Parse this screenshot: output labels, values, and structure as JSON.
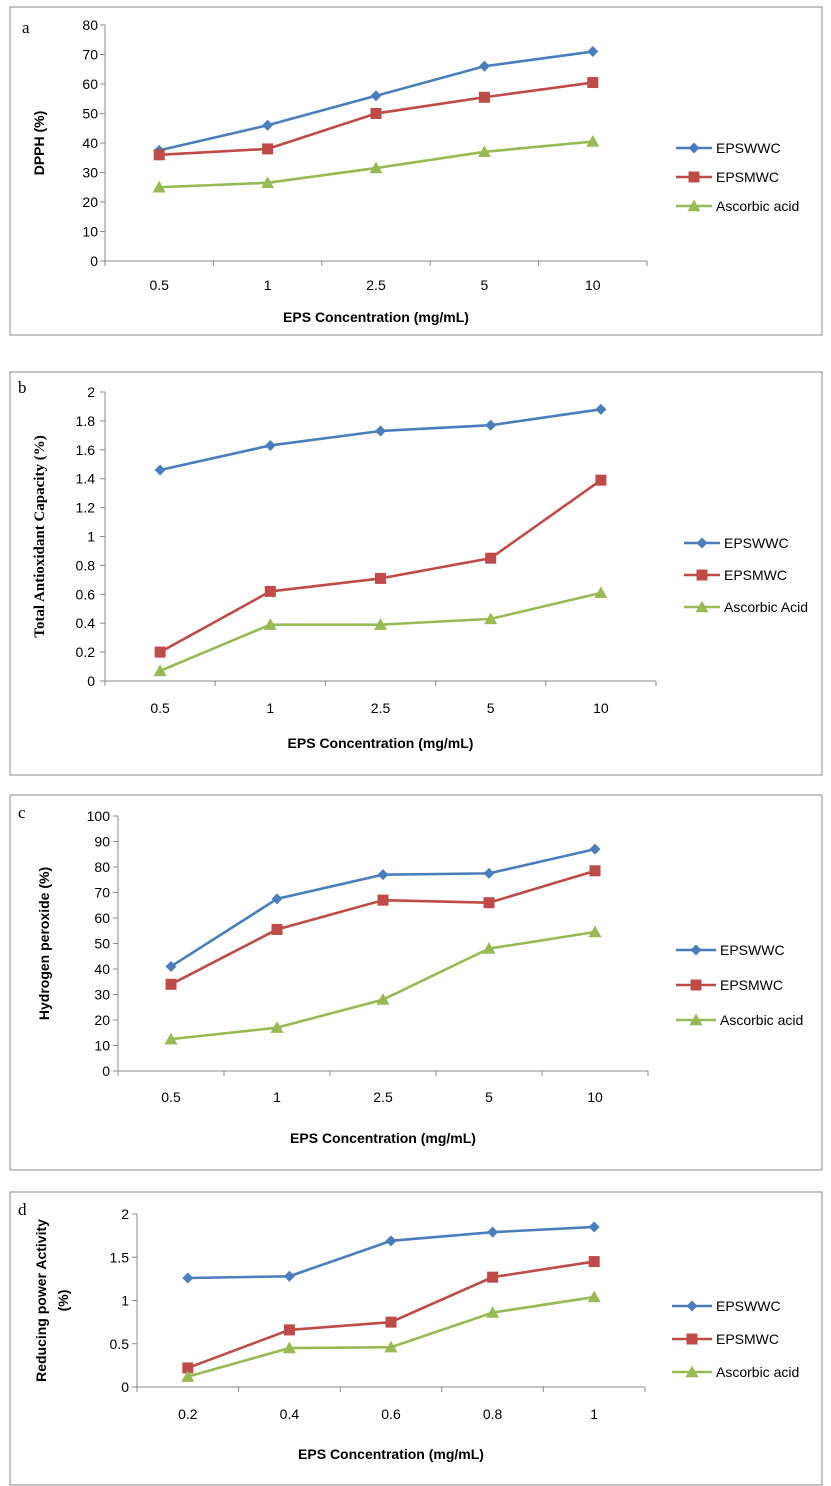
{
  "chart_data": [
    {
      "panel": "a",
      "type": "line",
      "categories": [
        "0.5",
        "1",
        "2.5",
        "5",
        "10"
      ],
      "xlabel": "EPS Concentration (mg/mL)",
      "ylabel": "DPPH (%)",
      "ylim": [
        0,
        80
      ],
      "yticks": [
        "0",
        "10",
        "20",
        "30",
        "40",
        "50",
        "60",
        "70",
        "80"
      ],
      "grid": false,
      "legend_position": "right",
      "series": [
        {
          "name": "EPSWWC",
          "color": "#4a7ebb",
          "marker": "diamond",
          "values": [
            37.5,
            46,
            56,
            66,
            71
          ]
        },
        {
          "name": "EPSMWC",
          "color": "#be4b48",
          "marker": "square",
          "values": [
            36,
            38,
            50,
            55.5,
            60.5
          ]
        },
        {
          "name": "Ascorbic acid",
          "color": "#98b954",
          "marker": "triangle",
          "values": [
            25,
            26.5,
            31.5,
            37,
            40.5
          ]
        }
      ]
    },
    {
      "panel": "b",
      "type": "line",
      "categories": [
        "0.5",
        "1",
        "2.5",
        "5",
        "10"
      ],
      "xlabel": "EPS Concentration (mg/mL)",
      "ylabel": "Total Antioxidant Capacity (%)",
      "ylim": [
        0,
        2
      ],
      "yticks": [
        "0",
        "0.2",
        "0.4",
        "0.6",
        "0.8",
        "1",
        "1.2",
        "1.4",
        "1.6",
        "1.8",
        "2"
      ],
      "grid": false,
      "legend_position": "right",
      "series": [
        {
          "name": "EPSWWC",
          "color": "#4a7ebb",
          "marker": "diamond",
          "values": [
            1.46,
            1.63,
            1.73,
            1.77,
            1.88
          ]
        },
        {
          "name": "EPSMWC",
          "color": "#be4b48",
          "marker": "square",
          "values": [
            0.2,
            0.62,
            0.71,
            0.85,
            1.39
          ]
        },
        {
          "name": "Ascorbic Acid",
          "color": "#98b954",
          "marker": "triangle",
          "values": [
            0.07,
            0.39,
            0.39,
            0.43,
            0.61
          ]
        }
      ]
    },
    {
      "panel": "c",
      "type": "line",
      "categories": [
        "0.5",
        "1",
        "2.5",
        "5",
        "10"
      ],
      "xlabel": "EPS Concentration (mg/mL)",
      "ylabel": "Hydrogen peroxide (%)",
      "ylim": [
        0,
        100
      ],
      "yticks": [
        "0",
        "10",
        "20",
        "30",
        "40",
        "50",
        "60",
        "70",
        "80",
        "90",
        "100"
      ],
      "grid": false,
      "legend_position": "right",
      "series": [
        {
          "name": "EPSWWC",
          "color": "#4a7ebb",
          "marker": "diamond",
          "values": [
            41,
            67.5,
            77,
            77.5,
            87
          ]
        },
        {
          "name": "EPSMWC",
          "color": "#be4b48",
          "marker": "square",
          "values": [
            34,
            55.5,
            67,
            66,
            78.5
          ]
        },
        {
          "name": "Ascorbic acid",
          "color": "#98b954",
          "marker": "triangle",
          "values": [
            12.5,
            17,
            28,
            48,
            54.5
          ]
        }
      ]
    },
    {
      "panel": "d",
      "type": "line",
      "categories": [
        "0.2",
        "0.4",
        "0.6",
        "0.8",
        "1"
      ],
      "xlabel": "EPS Concentration (mg/mL)",
      "ylabel": "Reducing power Activity (%)",
      "ylim": [
        0,
        2
      ],
      "yticks": [
        "0",
        "0.5",
        "1",
        "1.5",
        "2"
      ],
      "grid": false,
      "legend_position": "right",
      "series": [
        {
          "name": "EPSWWC",
          "color": "#4a7ebb",
          "marker": "diamond",
          "values": [
            1.26,
            1.28,
            1.69,
            1.79,
            1.85
          ]
        },
        {
          "name": "EPSMWC",
          "color": "#be4b48",
          "marker": "square",
          "values": [
            0.22,
            0.66,
            0.75,
            1.27,
            1.45
          ]
        },
        {
          "name": "Ascorbic acid",
          "color": "#98b954",
          "marker": "triangle",
          "values": [
            0.12,
            0.45,
            0.46,
            0.86,
            1.04
          ]
        }
      ]
    }
  ]
}
